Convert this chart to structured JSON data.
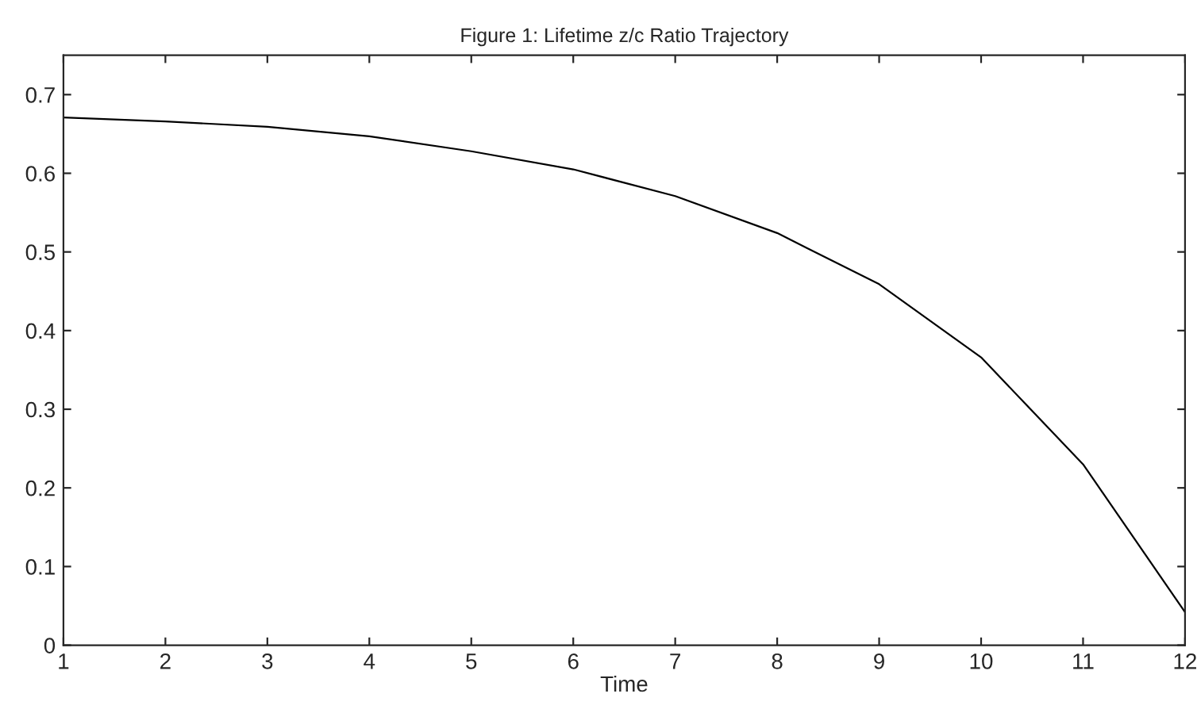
{
  "chart_data": {
    "type": "line",
    "title": "Figure 1: Lifetime z/c Ratio Trajectory",
    "xlabel": "Time",
    "x": [
      1,
      2,
      3,
      4,
      5,
      6,
      7,
      8,
      9,
      10,
      11,
      12
    ],
    "series": [
      {
        "color": "#000000",
        "values": [
          0.671,
          0.666,
          0.659,
          0.647,
          0.628,
          0.605,
          0.571,
          0.524,
          0.459,
          0.366,
          0.23,
          0.042
        ]
      }
    ],
    "xlim": [
      1,
      12
    ],
    "ylim": [
      0,
      0.75
    ],
    "xticks": [
      1,
      2,
      3,
      4,
      5,
      6,
      7,
      8,
      9,
      10,
      11,
      12
    ],
    "yticks": [
      0,
      0.1,
      0.2,
      0.3,
      0.4,
      0.5,
      0.6,
      0.7
    ],
    "grid": false,
    "legend": false,
    "line_style": "solid",
    "marker": "none"
  }
}
